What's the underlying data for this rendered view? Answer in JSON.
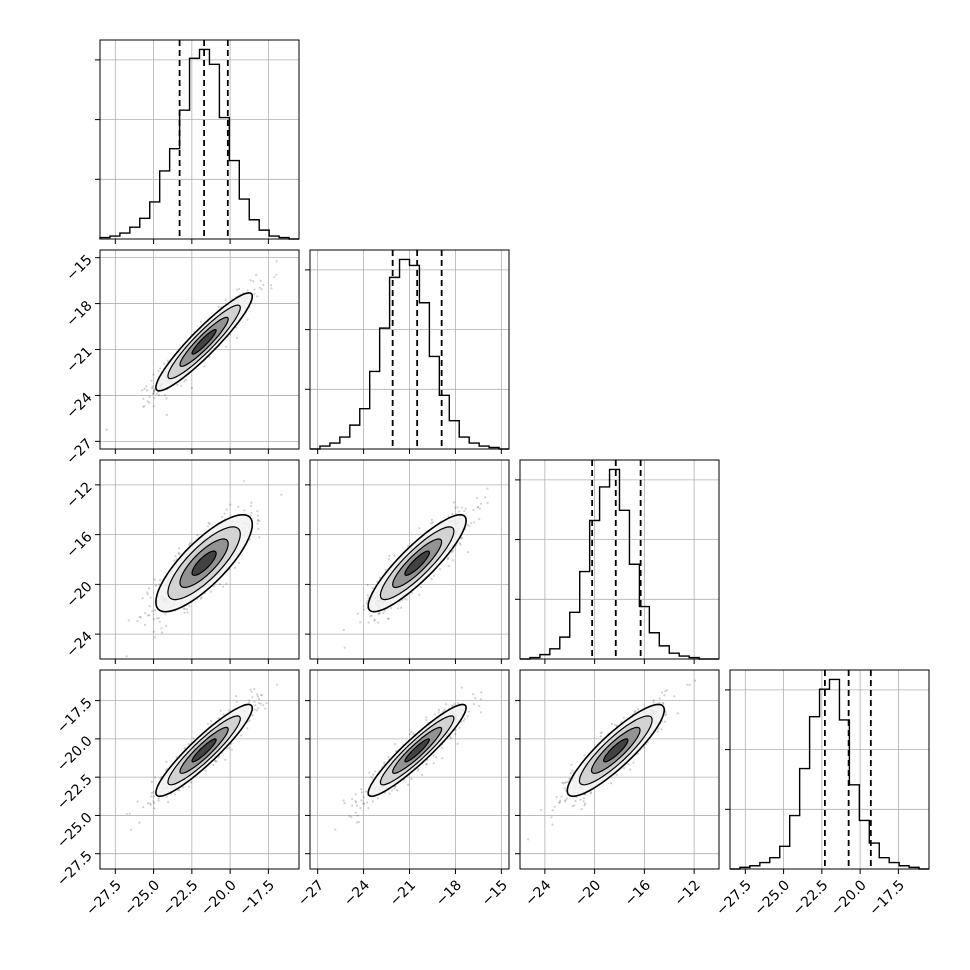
{
  "chart_data": {
    "type": "corner",
    "n_params": 4,
    "grid": true,
    "quantile_lines": "dashed",
    "params": [
      {
        "range": [
          -28.5,
          -15.5
        ],
        "ticks": [
          -27.5,
          -25.0,
          -22.5,
          -20.0,
          -17.5
        ],
        "tick_labels": [
          "−27.5",
          "−25.0",
          "−22.5",
          "−20.0",
          "−17.5"
        ],
        "quantiles": [
          -23.3,
          -21.7,
          -20.15
        ],
        "hist_counts": [
          1,
          2,
          4,
          8,
          14,
          25,
          46,
          61,
          87,
          122,
          128,
          118,
          82,
          53,
          27,
          13,
          6,
          2,
          1,
          0
        ]
      },
      {
        "range": [
          -27.5,
          -14.5
        ],
        "ticks": [
          -27,
          -24,
          -21,
          -18,
          -15
        ],
        "tick_labels": [
          "−27",
          "−24",
          "−21",
          "−18",
          "−15"
        ],
        "quantiles": [
          -22.1,
          -20.5,
          -18.9
        ],
        "hist_counts": [
          0,
          2,
          4,
          8,
          16,
          27,
          52,
          81,
          115,
          127,
          123,
          98,
          62,
          36,
          19,
          8,
          4,
          2,
          1,
          0
        ]
      },
      {
        "range": [
          -26.0,
          -10.0
        ],
        "ticks": [
          -24,
          -20,
          -16,
          -12
        ],
        "tick_labels": [
          "−24",
          "−20",
          "−16",
          "−12"
        ],
        "quantiles": [
          -20.2,
          -18.3,
          -16.3
        ],
        "hist_counts": [
          0,
          1,
          3,
          7,
          15,
          32,
          60,
          95,
          118,
          130,
          102,
          65,
          36,
          18,
          9,
          4,
          2,
          1,
          0,
          0
        ]
      },
      {
        "range": [
          -28.5,
          -15.5
        ],
        "ticks": [
          -27.5,
          -25.0,
          -22.5,
          -20.0,
          -17.5
        ],
        "tick_labels": [
          "−27.5",
          "−25.0",
          "−22.5",
          "−20.0",
          "−17.5"
        ],
        "quantiles": [
          -22.3,
          -20.75,
          -19.3
        ],
        "hist_counts": [
          0,
          1,
          2,
          4,
          7,
          14,
          33,
          62,
          94,
          111,
          117,
          92,
          52,
          30,
          16,
          7,
          4,
          2,
          1,
          0
        ]
      }
    ],
    "pairs": [
      {
        "row": 1,
        "col": 0,
        "rho": 0.93
      },
      {
        "row": 2,
        "col": 0,
        "rho": 0.8
      },
      {
        "row": 2,
        "col": 1,
        "rho": 0.88
      },
      {
        "row": 3,
        "col": 0,
        "rho": 0.92
      },
      {
        "row": 3,
        "col": 1,
        "rho": 0.93
      },
      {
        "row": 3,
        "col": 2,
        "rho": 0.88
      }
    ]
  }
}
